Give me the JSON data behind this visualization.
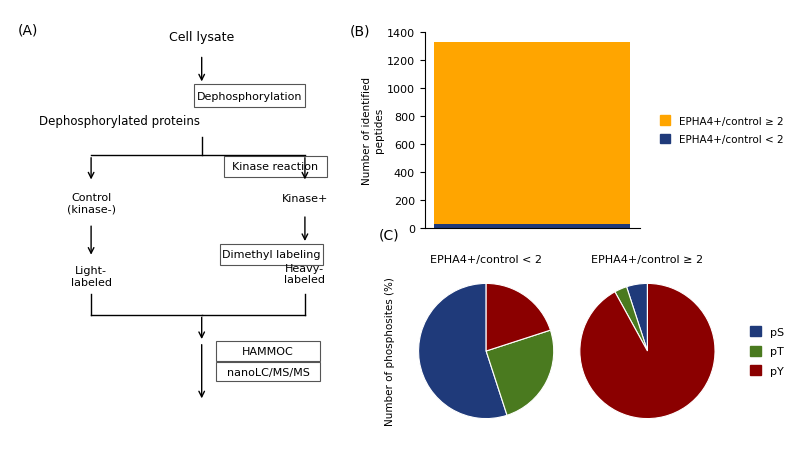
{
  "bar_orange_value": 1300,
  "bar_blue_value": 30,
  "bar_color_orange": "#FFA500",
  "bar_color_blue": "#1F3A7A",
  "bar_ylabel": "Number of identified\npeptides",
  "bar_legend_orange": "EPHA4+/control ≥ 2",
  "bar_legend_blue": "EPHA4+/control < 2",
  "bar_ylim": [
    0,
    1400
  ],
  "bar_yticks": [
    0,
    200,
    400,
    600,
    800,
    1000,
    1200,
    1400
  ],
  "pie1_title": "EPHA4+/control < 2",
  "pie2_title": "EPHA4+/control ≥ 2",
  "pie_ylabel": "Number of phosphosites (%)",
  "pie1_values": [
    55,
    25,
    20
  ],
  "pie2_values": [
    5,
    3,
    92
  ],
  "pie_colors_pS": "#1F3A7A",
  "pie_colors_pT": "#4A7A1F",
  "pie_colors_pY": "#8B0000",
  "bg_color": "#FFFFFF"
}
